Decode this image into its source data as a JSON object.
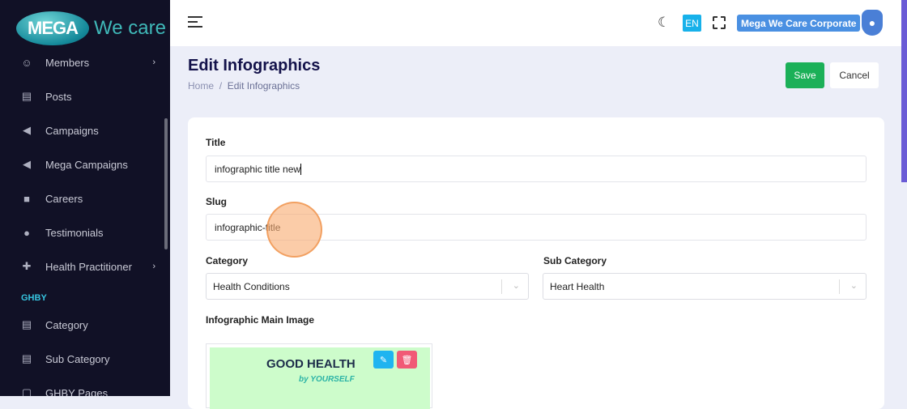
{
  "logo": {
    "brand": "MEGA",
    "tagline": "We care"
  },
  "sidebar": {
    "items": [
      {
        "label": "Members",
        "icon": "users-icon",
        "chevron": true
      },
      {
        "label": "Posts",
        "icon": "newspaper-icon"
      },
      {
        "label": "Campaigns",
        "icon": "megaphone-icon"
      },
      {
        "label": "Mega Campaigns",
        "icon": "megaphone-icon"
      },
      {
        "label": "Careers",
        "icon": "briefcase-icon"
      },
      {
        "label": "Testimonials",
        "icon": "comment-icon"
      },
      {
        "label": "Health Practitioner",
        "icon": "medical-kit-icon",
        "chevron": true
      }
    ],
    "section": "GHBY",
    "section_items": [
      {
        "label": "Category",
        "icon": "list-icon"
      },
      {
        "label": "Sub Category",
        "icon": "list-icon"
      },
      {
        "label": "GHBY Pages",
        "icon": "page-icon"
      }
    ]
  },
  "topbar": {
    "language": "EN",
    "account": "Mega We Care Corporate"
  },
  "page": {
    "title": "Edit Infographics",
    "breadcrumb": [
      "Home",
      "Edit Infographics"
    ],
    "save": "Save",
    "cancel": "Cancel"
  },
  "form": {
    "title_label": "Title",
    "title_value": "infographic title new",
    "slug_label": "Slug",
    "slug_value": "infographic-title",
    "category_label": "Category",
    "category_value": "Health Conditions",
    "subcategory_label": "Sub Category",
    "subcategory_value": "Heart Health",
    "image_label": "Infographic Main Image",
    "image_text": "GOOD HEALTH",
    "image_subtext": "by YOURSELF"
  }
}
